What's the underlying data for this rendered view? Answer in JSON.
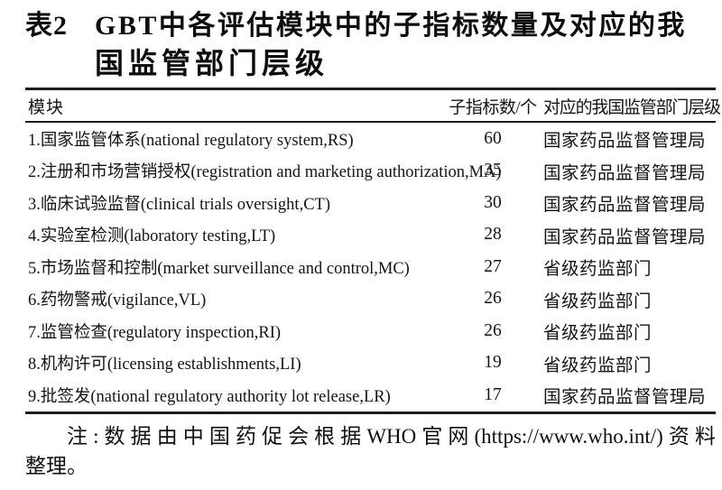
{
  "caption": {
    "label": "表2",
    "title_line1": "GBT中各评估模块中的子指标数量及对应的我",
    "title_line2": "国监管部门层级"
  },
  "table": {
    "columns": [
      "模块",
      "子指标数/个",
      "对应的我国监管部门层级"
    ],
    "rows": [
      {
        "module": "1.国家监管体系(national regulatory system,RS)",
        "count": "60",
        "authority": "国家药品监督管理局"
      },
      {
        "module": "2.注册和市场营销授权(registration and marketing authorization,MA)",
        "count": "35",
        "authority": "国家药品监督管理局"
      },
      {
        "module": "3.临床试验监督(clinical trials oversight,CT)",
        "count": "30",
        "authority": "国家药品监督管理局"
      },
      {
        "module": "4.实验室检测(laboratory testing,LT)",
        "count": "28",
        "authority": "国家药品监督管理局"
      },
      {
        "module": "5.市场监督和控制(market surveillance and control,MC)",
        "count": "27",
        "authority": "省级药监部门"
      },
      {
        "module": "6.药物警戒(vigilance,VL)",
        "count": "26",
        "authority": "省级药监部门"
      },
      {
        "module": "7.监管检查(regulatory inspection,RI)",
        "count": "26",
        "authority": "省级药监部门"
      },
      {
        "module": "8.机构许可(licensing establishments,LI)",
        "count": "19",
        "authority": "省级药监部门"
      },
      {
        "module": "9.批签发(national regulatory authority lot release,LR)",
        "count": "17",
        "authority": "国家药品监督管理局"
      }
    ]
  },
  "note": {
    "line1": "注:数据由中国药促会根据WHO官网(https://www.who.int/)资料",
    "line2": "整理。"
  },
  "colors": {
    "text": "#141414",
    "rule": "#1d1d1d",
    "background": "#ffffff"
  }
}
